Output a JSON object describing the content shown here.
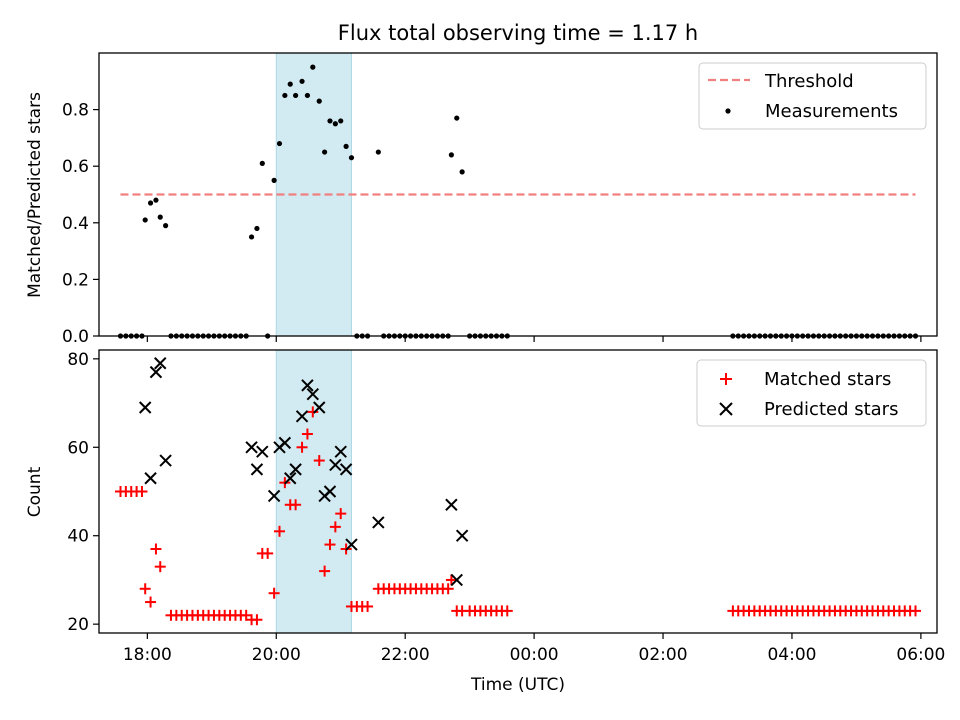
{
  "title": "Flux total observing time = 1.17 h",
  "colors": {
    "threshold": "#f08080",
    "measurement": "#000000",
    "matched": "#ff0000",
    "predicted": "#000000",
    "span": "#add8e6"
  },
  "chart_data": [
    {
      "type": "scatter",
      "xlabel": "",
      "ylabel": "Matched/Predicted stars",
      "xlim": [
        "17:15",
        "30:15"
      ],
      "ylim": [
        0,
        1.0
      ],
      "yticks": [
        0.0,
        0.2,
        0.4,
        0.6,
        0.8
      ],
      "ytick_labels": [
        "0.0",
        "0.2",
        "0.4",
        "0.6",
        "0.8"
      ],
      "span": [
        "20:00",
        "21:10"
      ],
      "legend": {
        "placement": "top-right",
        "threshold_label": "Threshold",
        "measurement_label": "Measurements"
      },
      "threshold": {
        "value": 0.5,
        "x": [
          "17:35",
          "29:55"
        ]
      },
      "measurements": [
        [
          "17:35",
          0
        ],
        [
          "17:40",
          0
        ],
        [
          "17:45",
          0
        ],
        [
          "17:50",
          0
        ],
        [
          "17:55",
          0
        ],
        [
          "17:58",
          0.41
        ],
        [
          "18:03",
          0.47
        ],
        [
          "18:08",
          0.48
        ],
        [
          "18:12",
          0.42
        ],
        [
          "18:17",
          0.39
        ],
        [
          "18:22",
          0
        ],
        [
          "18:27",
          0
        ],
        [
          "18:32",
          0
        ],
        [
          "18:37",
          0
        ],
        [
          "18:42",
          0
        ],
        [
          "18:47",
          0
        ],
        [
          "18:52",
          0
        ],
        [
          "18:57",
          0
        ],
        [
          "19:02",
          0
        ],
        [
          "19:07",
          0
        ],
        [
          "19:12",
          0
        ],
        [
          "19:17",
          0
        ],
        [
          "19:22",
          0
        ],
        [
          "19:27",
          0
        ],
        [
          "19:32",
          0
        ],
        [
          "19:37",
          0.35
        ],
        [
          "19:42",
          0.38
        ],
        [
          "19:47",
          0.61
        ],
        [
          "19:52",
          0
        ],
        [
          "19:58",
          0.55
        ],
        [
          "20:03",
          0.68
        ],
        [
          "20:08",
          0.85
        ],
        [
          "20:13",
          0.89
        ],
        [
          "20:18",
          0.85
        ],
        [
          "20:24",
          0.9
        ],
        [
          "20:29",
          0.85
        ],
        [
          "20:34",
          0.95
        ],
        [
          "20:40",
          0.83
        ],
        [
          "20:45",
          0.65
        ],
        [
          "20:50",
          0.76
        ],
        [
          "20:55",
          0.75
        ],
        [
          "21:00",
          0.76
        ],
        [
          "21:05",
          0.67
        ],
        [
          "21:10",
          0.63
        ],
        [
          "21:15",
          0
        ],
        [
          "21:20",
          0
        ],
        [
          "21:25",
          0
        ],
        [
          "21:35",
          0.65
        ],
        [
          "21:40",
          0
        ],
        [
          "21:45",
          0
        ],
        [
          "21:50",
          0
        ],
        [
          "21:55",
          0
        ],
        [
          "22:00",
          0
        ],
        [
          "22:05",
          0
        ],
        [
          "22:10",
          0
        ],
        [
          "22:15",
          0
        ],
        [
          "22:20",
          0
        ],
        [
          "22:25",
          0
        ],
        [
          "22:30",
          0
        ],
        [
          "22:35",
          0
        ],
        [
          "22:40",
          0
        ],
        [
          "22:43",
          0.64
        ],
        [
          "22:48",
          0.77
        ],
        [
          "22:53",
          0.58
        ],
        [
          "23:00",
          0
        ],
        [
          "23:05",
          0
        ],
        [
          "23:10",
          0
        ],
        [
          "23:15",
          0
        ],
        [
          "23:20",
          0
        ],
        [
          "23:25",
          0
        ],
        [
          "23:30",
          0
        ],
        [
          "23:35",
          0
        ],
        [
          "27:05",
          0
        ],
        [
          "27:10",
          0
        ],
        [
          "27:15",
          0
        ],
        [
          "27:20",
          0
        ],
        [
          "27:25",
          0
        ],
        [
          "27:30",
          0
        ],
        [
          "27:35",
          0
        ],
        [
          "27:40",
          0
        ],
        [
          "27:45",
          0
        ],
        [
          "27:50",
          0
        ],
        [
          "27:55",
          0
        ],
        [
          "28:00",
          0
        ],
        [
          "28:05",
          0
        ],
        [
          "28:10",
          0
        ],
        [
          "28:15",
          0
        ],
        [
          "28:20",
          0
        ],
        [
          "28:25",
          0
        ],
        [
          "28:30",
          0
        ],
        [
          "28:35",
          0
        ],
        [
          "28:40",
          0
        ],
        [
          "28:45",
          0
        ],
        [
          "28:50",
          0
        ],
        [
          "28:55",
          0
        ],
        [
          "29:00",
          0
        ],
        [
          "29:05",
          0
        ],
        [
          "29:10",
          0
        ],
        [
          "29:15",
          0
        ],
        [
          "29:20",
          0
        ],
        [
          "29:25",
          0
        ],
        [
          "29:30",
          0
        ],
        [
          "29:35",
          0
        ],
        [
          "29:40",
          0
        ],
        [
          "29:45",
          0
        ],
        [
          "29:50",
          0
        ],
        [
          "29:55",
          0
        ]
      ]
    },
    {
      "type": "scatter",
      "xlabel": "Time (UTC)",
      "ylabel": "Count",
      "xlim": [
        "17:15",
        "30:15"
      ],
      "ylim": [
        18,
        82
      ],
      "yticks": [
        20,
        40,
        60,
        80
      ],
      "ytick_labels": [
        "20",
        "40",
        "60",
        "80"
      ],
      "xticks": [
        "18:00",
        "20:00",
        "22:00",
        "24:00",
        "26:00",
        "28:00",
        "30:00"
      ],
      "xtick_labels": [
        "18:00",
        "20:00",
        "22:00",
        "00:00",
        "02:00",
        "04:00",
        "06:00"
      ],
      "span": [
        "20:00",
        "21:10"
      ],
      "legend": {
        "placement": "top-right",
        "matched_label": "Matched stars",
        "predicted_label": "Predicted stars"
      },
      "series": [
        {
          "name": "Matched stars",
          "marker": "plus",
          "points": [
            [
              "17:35",
              50
            ],
            [
              "17:40",
              50
            ],
            [
              "17:45",
              50
            ],
            [
              "17:50",
              50
            ],
            [
              "17:55",
              50
            ],
            [
              "17:58",
              28
            ],
            [
              "18:03",
              25
            ],
            [
              "18:08",
              37
            ],
            [
              "18:12",
              33
            ],
            [
              "18:22",
              22
            ],
            [
              "18:27",
              22
            ],
            [
              "18:32",
              22
            ],
            [
              "18:37",
              22
            ],
            [
              "18:42",
              22
            ],
            [
              "18:47",
              22
            ],
            [
              "18:52",
              22
            ],
            [
              "18:57",
              22
            ],
            [
              "19:02",
              22
            ],
            [
              "19:07",
              22
            ],
            [
              "19:12",
              22
            ],
            [
              "19:17",
              22
            ],
            [
              "19:22",
              22
            ],
            [
              "19:27",
              22
            ],
            [
              "19:32",
              22
            ],
            [
              "19:37",
              21
            ],
            [
              "19:42",
              21
            ],
            [
              "19:47",
              36
            ],
            [
              "19:52",
              36
            ],
            [
              "19:58",
              27
            ],
            [
              "20:03",
              41
            ],
            [
              "20:08",
              52
            ],
            [
              "20:13",
              47
            ],
            [
              "20:18",
              47
            ],
            [
              "20:24",
              60
            ],
            [
              "20:29",
              63
            ],
            [
              "20:34",
              68
            ],
            [
              "20:40",
              57
            ],
            [
              "20:45",
              32
            ],
            [
              "20:50",
              38
            ],
            [
              "20:55",
              42
            ],
            [
              "21:00",
              45
            ],
            [
              "21:05",
              37
            ],
            [
              "21:10",
              24
            ],
            [
              "21:15",
              24
            ],
            [
              "21:20",
              24
            ],
            [
              "21:25",
              24
            ],
            [
              "21:35",
              28
            ],
            [
              "21:40",
              28
            ],
            [
              "21:45",
              28
            ],
            [
              "21:50",
              28
            ],
            [
              "21:55",
              28
            ],
            [
              "22:00",
              28
            ],
            [
              "22:05",
              28
            ],
            [
              "22:10",
              28
            ],
            [
              "22:15",
              28
            ],
            [
              "22:20",
              28
            ],
            [
              "22:25",
              28
            ],
            [
              "22:30",
              28
            ],
            [
              "22:35",
              28
            ],
            [
              "22:40",
              28
            ],
            [
              "22:43",
              30
            ],
            [
              "22:48",
              23
            ],
            [
              "22:53",
              23
            ],
            [
              "23:00",
              23
            ],
            [
              "23:05",
              23
            ],
            [
              "23:10",
              23
            ],
            [
              "23:15",
              23
            ],
            [
              "23:20",
              23
            ],
            [
              "23:25",
              23
            ],
            [
              "23:30",
              23
            ],
            [
              "23:35",
              23
            ],
            [
              "27:05",
              23
            ],
            [
              "27:10",
              23
            ],
            [
              "27:15",
              23
            ],
            [
              "27:20",
              23
            ],
            [
              "27:25",
              23
            ],
            [
              "27:30",
              23
            ],
            [
              "27:35",
              23
            ],
            [
              "27:40",
              23
            ],
            [
              "27:45",
              23
            ],
            [
              "27:50",
              23
            ],
            [
              "27:55",
              23
            ],
            [
              "28:00",
              23
            ],
            [
              "28:05",
              23
            ],
            [
              "28:10",
              23
            ],
            [
              "28:15",
              23
            ],
            [
              "28:20",
              23
            ],
            [
              "28:25",
              23
            ],
            [
              "28:30",
              23
            ],
            [
              "28:35",
              23
            ],
            [
              "28:40",
              23
            ],
            [
              "28:45",
              23
            ],
            [
              "28:50",
              23
            ],
            [
              "28:55",
              23
            ],
            [
              "29:00",
              23
            ],
            [
              "29:05",
              23
            ],
            [
              "29:10",
              23
            ],
            [
              "29:15",
              23
            ],
            [
              "29:20",
              23
            ],
            [
              "29:25",
              23
            ],
            [
              "29:30",
              23
            ],
            [
              "29:35",
              23
            ],
            [
              "29:40",
              23
            ],
            [
              "29:45",
              23
            ],
            [
              "29:50",
              23
            ],
            [
              "29:55",
              23
            ]
          ]
        },
        {
          "name": "Predicted stars",
          "marker": "x",
          "points": [
            [
              "17:58",
              69
            ],
            [
              "18:03",
              53
            ],
            [
              "18:08",
              77
            ],
            [
              "18:12",
              79
            ],
            [
              "18:17",
              57
            ],
            [
              "19:37",
              60
            ],
            [
              "19:42",
              55
            ],
            [
              "19:47",
              59
            ],
            [
              "19:58",
              49
            ],
            [
              "20:03",
              60
            ],
            [
              "20:08",
              61
            ],
            [
              "20:13",
              53
            ],
            [
              "20:18",
              55
            ],
            [
              "20:24",
              67
            ],
            [
              "20:29",
              74
            ],
            [
              "20:34",
              72
            ],
            [
              "20:40",
              69
            ],
            [
              "20:45",
              49
            ],
            [
              "20:50",
              50
            ],
            [
              "20:55",
              56
            ],
            [
              "21:00",
              59
            ],
            [
              "21:05",
              55
            ],
            [
              "21:10",
              38
            ],
            [
              "21:35",
              43
            ],
            [
              "22:43",
              47
            ],
            [
              "22:53",
              40
            ],
            [
              "22:48",
              30
            ]
          ]
        }
      ]
    }
  ]
}
